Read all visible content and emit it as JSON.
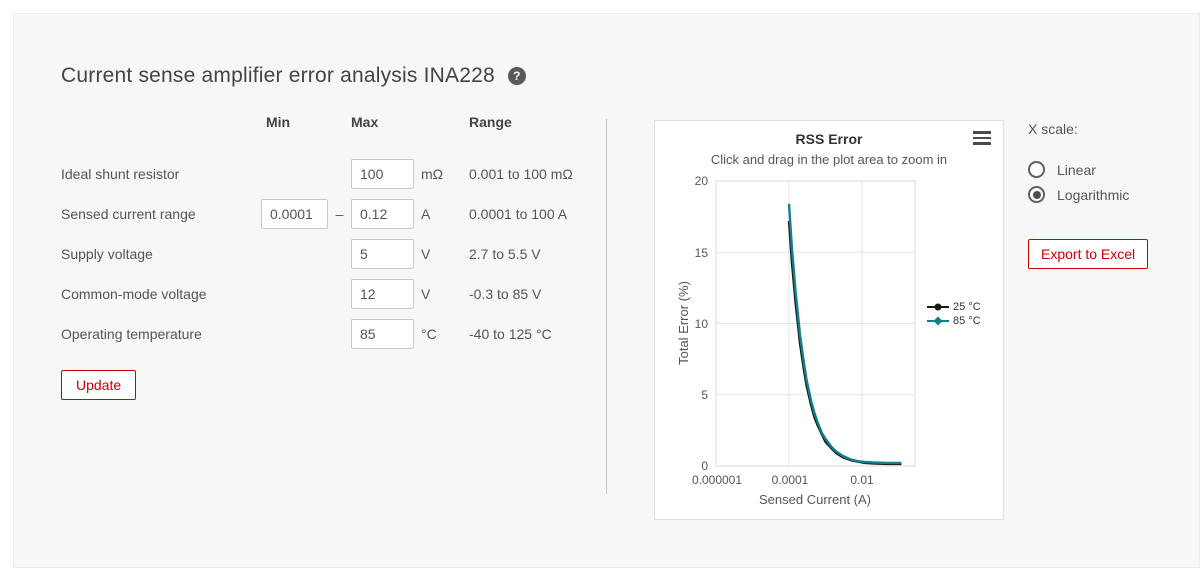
{
  "page": {
    "title": "Current sense amplifier error analysis INA228",
    "help_icon": "?"
  },
  "form": {
    "headers": {
      "min": "Min",
      "max": "Max",
      "range": "Range"
    },
    "rows": [
      {
        "label": "Ideal shunt resistor",
        "max": "100",
        "unit": "mΩ",
        "range": "0.001 to 100 mΩ"
      },
      {
        "label": "Sensed current range",
        "min": "0.0001",
        "dash": "–",
        "max": "0.12",
        "unit": "A",
        "range": "0.0001 to 100 A"
      },
      {
        "label": "Supply voltage",
        "max": "5",
        "unit": "V",
        "range": "2.7 to 5.5 V"
      },
      {
        "label": "Common-mode voltage",
        "max": "12",
        "unit": "V",
        "range": "-0.3 to 85 V"
      },
      {
        "label": "Operating temperature",
        "max": "85",
        "unit": "°C",
        "range": "-40 to 125 °C"
      }
    ],
    "update_button": "Update"
  },
  "chart_data": {
    "type": "line",
    "title": "RSS Error",
    "subtitle": "Click and drag in the plot area to zoom in",
    "xlabel": "Sensed Current (A)",
    "ylabel": "Total Error (%)",
    "x_scale": "logarithmic",
    "xlim": [
      1e-06,
      0.3
    ],
    "ylim": [
      0,
      20
    ],
    "x_ticks": [
      "0.000001",
      "0.0001",
      "0.01"
    ],
    "y_ticks": [
      "0",
      "5",
      "10",
      "15",
      "20"
    ],
    "grid": true,
    "legend_position": "right",
    "series": [
      {
        "name": "25 °C",
        "color": "#1a1a1a",
        "marker": "circle",
        "x": [
          0.0001,
          0.00012,
          0.00015,
          0.0002,
          0.00025,
          0.0003,
          0.0004,
          0.0005,
          0.0006,
          0.0008,
          0.001,
          0.0015,
          0.002,
          0.003,
          0.005,
          0.008,
          0.012,
          0.02,
          0.03,
          0.05,
          0.08,
          0.12
        ],
        "y": [
          17.2,
          14.3,
          11.5,
          8.6,
          6.9,
          5.7,
          4.3,
          3.4,
          2.9,
          2.2,
          1.7,
          1.2,
          0.9,
          0.6,
          0.4,
          0.3,
          0.22,
          0.18,
          0.16,
          0.15,
          0.15,
          0.15
        ]
      },
      {
        "name": "85 °C",
        "color": "#11808d",
        "marker": "diamond",
        "x": [
          0.0001,
          0.00012,
          0.00015,
          0.0002,
          0.00025,
          0.0003,
          0.0004,
          0.0005,
          0.0006,
          0.0008,
          0.001,
          0.0015,
          0.002,
          0.003,
          0.005,
          0.008,
          0.012,
          0.02,
          0.03,
          0.05,
          0.08,
          0.12
        ],
        "y": [
          18.4,
          15.3,
          12.3,
          9.2,
          7.4,
          6.1,
          4.6,
          3.7,
          3.1,
          2.3,
          1.9,
          1.3,
          1.0,
          0.7,
          0.45,
          0.33,
          0.28,
          0.25,
          0.23,
          0.22,
          0.22,
          0.22
        ]
      }
    ]
  },
  "controls": {
    "x_scale_label": "X scale:",
    "options": [
      {
        "label": "Linear",
        "selected": false
      },
      {
        "label": "Logarithmic",
        "selected": true
      }
    ],
    "export_button": "Export to Excel"
  },
  "colors": {
    "accent_red": "#cc0000",
    "series_25c": "#1a1a1a",
    "series_85c": "#11808d"
  }
}
